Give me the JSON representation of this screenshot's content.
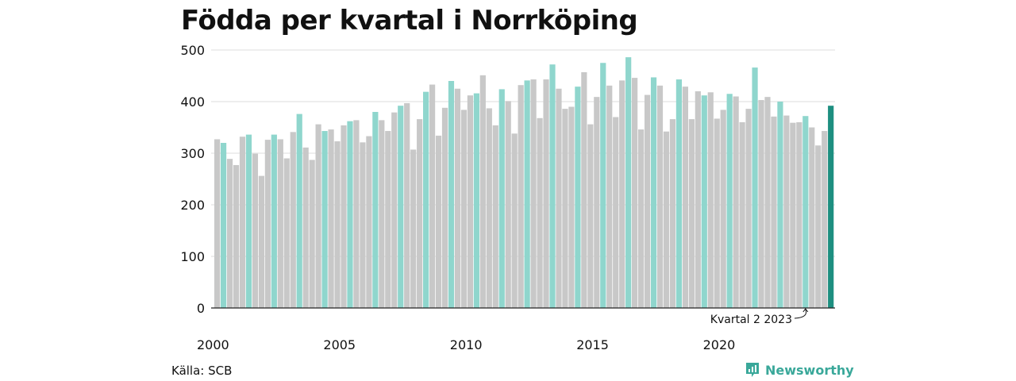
{
  "title": "Födda per kvartal i Norrköping",
  "source": "Källa: SCB",
  "brand": "Newsworthy",
  "colors": {
    "other_quarters": "#c8c8c8",
    "q2": "#8fd6cd",
    "latest": "#1d8f80",
    "brand": "#3aa89a"
  },
  "chart_data": {
    "type": "bar",
    "title": "Födda per kvartal i Norrköping",
    "xlabel": "",
    "ylabel": "",
    "ylim": [
      0,
      500
    ],
    "yticks": [
      "0",
      "100",
      "200",
      "300",
      "400",
      "500"
    ],
    "xtick_labels": [
      "2000",
      "2005",
      "2010",
      "2015",
      "2020"
    ],
    "annotation": "Kvartal 2 2023",
    "grid": true,
    "start_year": 2000,
    "values": [
      327,
      320,
      289,
      277,
      332,
      336,
      299,
      256,
      326,
      336,
      327,
      290,
      341,
      376,
      311,
      287,
      356,
      343,
      346,
      323,
      354,
      362,
      364,
      321,
      333,
      380,
      364,
      343,
      379,
      392,
      397,
      307,
      366,
      419,
      433,
      334,
      388,
      440,
      425,
      384,
      412,
      416,
      451,
      387,
      354,
      424,
      401,
      338,
      432,
      441,
      443,
      368,
      443,
      472,
      425,
      386,
      390,
      429,
      457,
      356,
      409,
      475,
      431,
      370,
      441,
      486,
      446,
      346,
      413,
      447,
      431,
      342,
      366,
      443,
      429,
      366,
      420,
      412,
      418,
      367,
      384,
      415,
      410,
      360,
      386,
      466,
      403,
      409,
      371,
      400,
      373,
      359,
      360,
      372,
      350,
      315,
      343,
      392
    ]
  }
}
